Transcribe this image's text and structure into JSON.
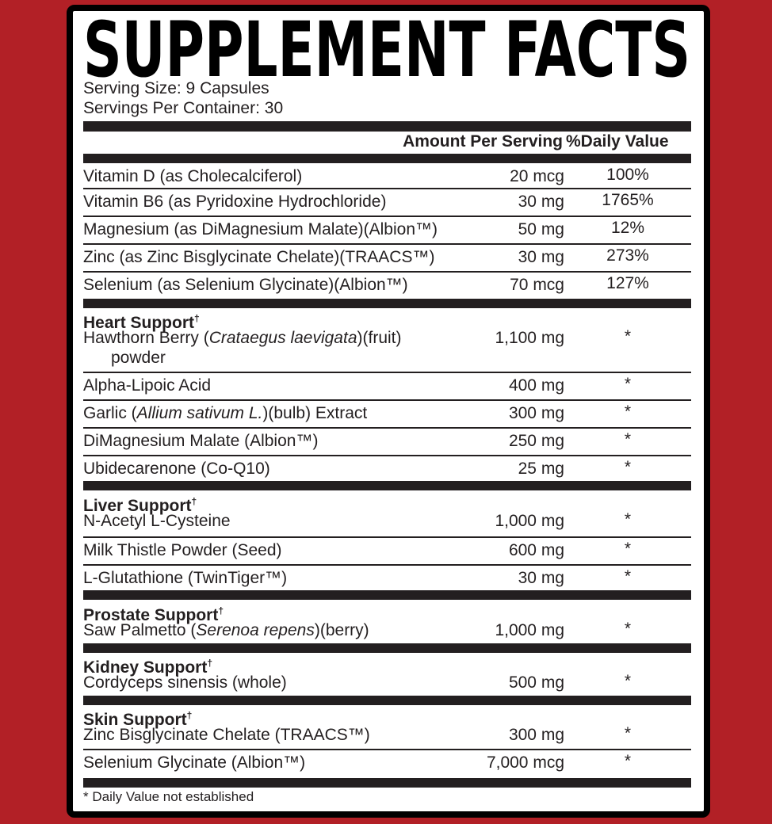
{
  "title": "SUPPLEMENT FACTS",
  "serving_size": "Serving Size: 9 Capsules",
  "servings_per_container": "Servings Per Container: 30",
  "header": {
    "amount": "Amount Per Serving",
    "dv": "%Daily Value"
  },
  "colors": {
    "background": "#b22026",
    "text": "#231f20",
    "panel": "#ffffff"
  },
  "vitamins": [
    {
      "label": [
        {
          "t": "Vitamin D (as Cholecalciferol)"
        }
      ],
      "amount": "20 mcg",
      "dv": "100%"
    },
    {
      "label": [
        {
          "t": "Vitamin B6 (as Pyridoxine Hydrochloride)"
        }
      ],
      "amount": "30 mg",
      "dv": "1765%"
    },
    {
      "label": [
        {
          "t": "Magnesium (as DiMagnesium Malate)(Albion™)"
        }
      ],
      "amount": "50 mg",
      "dv": "12%"
    },
    {
      "label": [
        {
          "t": "Zinc (as Zinc Bisglycinate Chelate)(TRAACS™)"
        }
      ],
      "amount": "30 mg",
      "dv": "273%"
    },
    {
      "label": [
        {
          "t": "Selenium (as Selenium Glycinate)(Albion™)"
        }
      ],
      "amount": "70 mcg",
      "dv": "127%"
    }
  ],
  "sections": [
    {
      "heading": "Heart Support",
      "dagger": "†",
      "items": [
        {
          "label": [
            {
              "t": "Hawthorn Berry ("
            },
            {
              "t": "Crataegus laevigata",
              "i": true
            },
            {
              "t": ")(fruit)"
            }
          ],
          "label2": "powder",
          "amount": "1,100 mg",
          "dv": "*"
        },
        {
          "label": [
            {
              "t": "Alpha-Lipoic Acid"
            }
          ],
          "amount": "400 mg",
          "dv": "*"
        },
        {
          "label": [
            {
              "t": "Garlic ("
            },
            {
              "t": "Allium sativum L.",
              "i": true
            },
            {
              "t": ")(bulb) Extract"
            }
          ],
          "amount": "300 mg",
          "dv": "*"
        },
        {
          "label": [
            {
              "t": "DiMagnesium Malate (Albion™)"
            }
          ],
          "amount": "250 mg",
          "dv": "*"
        },
        {
          "label": [
            {
              "t": "Ubidecarenone (Co-Q10)"
            }
          ],
          "amount": "25 mg",
          "dv": "*"
        }
      ]
    },
    {
      "heading": "Liver Support",
      "dagger": "†",
      "items": [
        {
          "label": [
            {
              "t": "N-Acetyl L-Cysteine"
            }
          ],
          "amount": "1,000 mg",
          "dv": "*"
        },
        {
          "label": [
            {
              "t": "Milk Thistle Powder (Seed)"
            }
          ],
          "amount": "600 mg",
          "dv": "*"
        },
        {
          "label": [
            {
              "t": "L-Glutathione (TwinTiger™)"
            }
          ],
          "amount": "30 mg",
          "dv": "*"
        }
      ]
    },
    {
      "heading": "Prostate Support",
      "dagger": "†",
      "items": [
        {
          "label": [
            {
              "t": "Saw Palmetto ("
            },
            {
              "t": "Serenoa repens",
              "i": true
            },
            {
              "t": ")(berry)"
            }
          ],
          "amount": "1,000 mg",
          "dv": "*"
        }
      ]
    },
    {
      "heading": "Kidney Support",
      "dagger": "†",
      "items": [
        {
          "label": [
            {
              "t": "Cordyceps sinensis (whole)"
            }
          ],
          "amount": "500 mg",
          "dv": "*"
        }
      ]
    },
    {
      "heading": "Skin Support",
      "dagger": "†",
      "items": [
        {
          "label": [
            {
              "t": "Zinc Bisglycinate Chelate (TRAACS™)"
            }
          ],
          "amount": "300 mg",
          "dv": "*"
        },
        {
          "label": [
            {
              "t": "Selenium Glycinate (Albion™)"
            }
          ],
          "amount": "7,000 mcg",
          "dv": "*"
        }
      ]
    }
  ],
  "footnote": "* Daily Value not established"
}
